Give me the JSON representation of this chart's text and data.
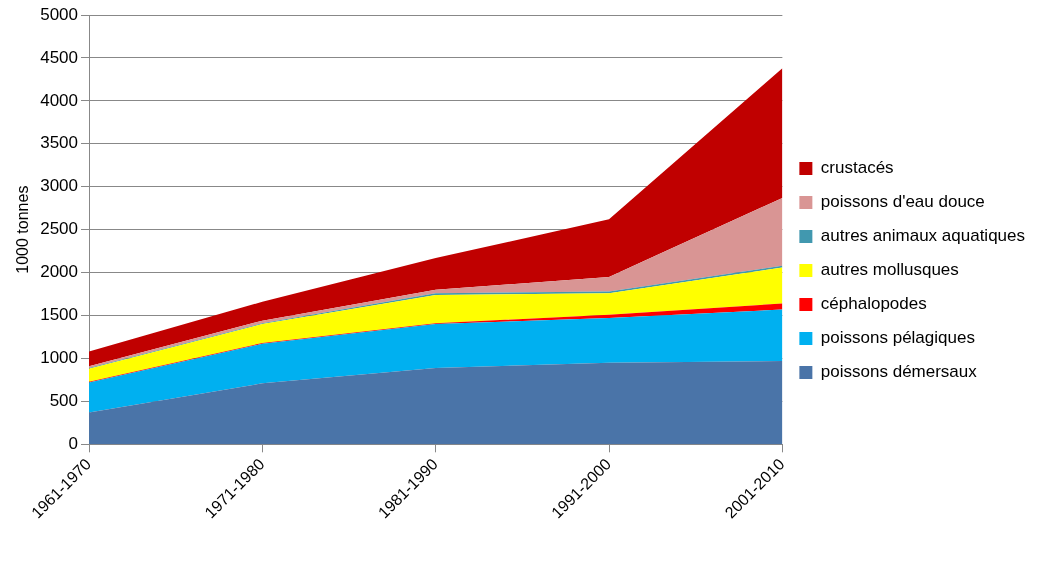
{
  "chart_data": {
    "type": "area",
    "ylabel": "1000 tonnes",
    "categories": [
      "1961-1970",
      "1971-1980",
      "1981-1990",
      "1991-2000",
      "2001-2010"
    ],
    "stacked": true,
    "ylim": [
      0,
      5000
    ],
    "yticks": [
      0,
      500,
      1000,
      1500,
      2000,
      2500,
      3000,
      3500,
      4000,
      4500,
      5000
    ],
    "grid": "y",
    "legend": "right",
    "series": [
      {
        "name": "poissons démersaux",
        "color": "#4a74a8",
        "values": [
          370,
          710,
          890,
          950,
          970
        ]
      },
      {
        "name": "poissons pélagiques",
        "color": "#00b0f0",
        "values": [
          350,
          460,
          510,
          520,
          600
        ]
      },
      {
        "name": "céphalopodes",
        "color": "#ff0000",
        "values": [
          10,
          10,
          10,
          40,
          70
        ]
      },
      {
        "name": "autres mollusques",
        "color": "#ffff00",
        "values": [
          150,
          220,
          330,
          250,
          420
        ]
      },
      {
        "name": "autres animaux aquatiques",
        "color": "#4198af",
        "values": [
          10,
          10,
          20,
          20,
          20
        ]
      },
      {
        "name": "poissons d'eau douce",
        "color": "#d99594",
        "values": [
          20,
          30,
          40,
          170,
          790
        ]
      },
      {
        "name": "crustacés",
        "color": "#c00000",
        "values": [
          170,
          220,
          370,
          670,
          1510
        ]
      }
    ]
  }
}
